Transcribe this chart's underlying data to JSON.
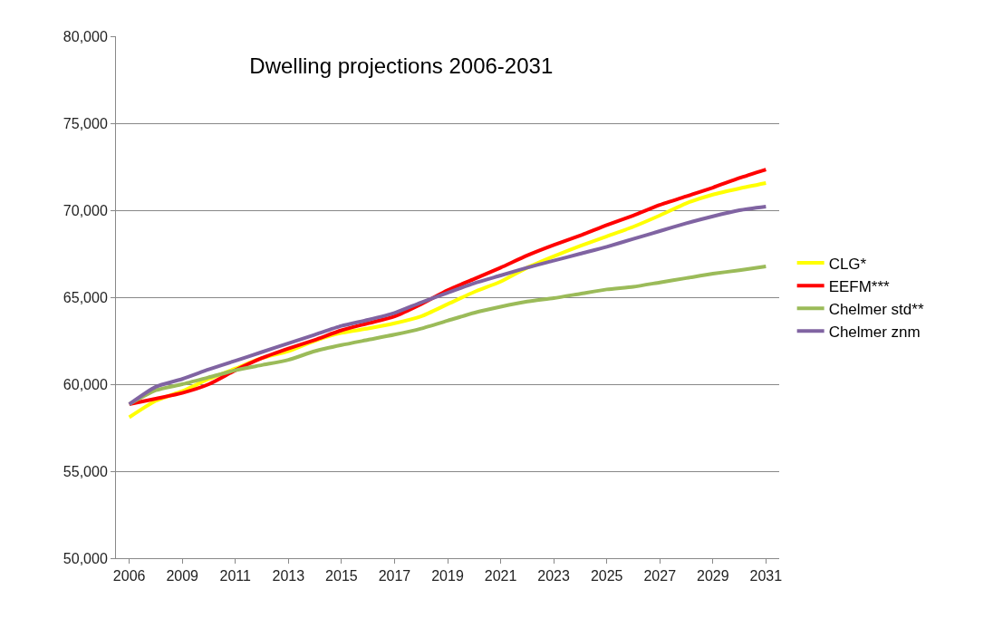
{
  "chart_data": {
    "type": "line",
    "title": "Dwelling projections 2006-2031",
    "categories": [
      "2006",
      null,
      "2009",
      null,
      "2011",
      null,
      "2013",
      null,
      "2015",
      null,
      "2017",
      null,
      "2019",
      null,
      "2021",
      null,
      "2023",
      null,
      "2025",
      null,
      "2027",
      null,
      "2029",
      null,
      "2031"
    ],
    "ylim": [
      50000,
      80000
    ],
    "yticks": [
      {
        "value": 50000,
        "label": "50,000"
      },
      {
        "value": 55000,
        "label": "55,000"
      },
      {
        "value": 60000,
        "label": "60,000"
      },
      {
        "value": 65000,
        "label": "65,000"
      },
      {
        "value": 70000,
        "label": "70,000"
      },
      {
        "value": 75000,
        "label": "75,000"
      },
      {
        "value": 80000,
        "label": "80,000"
      }
    ],
    "grid": "y",
    "legend": "right",
    "marker": "none",
    "line_style": "solid",
    "series": [
      {
        "name": "CLG*",
        "color": "#ffff00",
        "values": [
          58100,
          59050,
          59600,
          60300,
          60900,
          61500,
          61900,
          62500,
          62950,
          63200,
          63500,
          63900,
          64600,
          65300,
          65900,
          66700,
          67350,
          67950,
          68500,
          69050,
          69700,
          70400,
          70900,
          71250,
          71560
        ]
      },
      {
        "name": "EEFM***",
        "color": "#ff0000",
        "values": [
          58850,
          59170,
          59500,
          60000,
          60800,
          61500,
          62050,
          62550,
          63100,
          63500,
          63900,
          64600,
          65400,
          66050,
          66700,
          67400,
          68000,
          68550,
          69150,
          69700,
          70300,
          70800,
          71300,
          71850,
          72340
        ]
      },
      {
        "name": "Chelmer std**",
        "color": "#9bbb59",
        "values": [
          58850,
          59650,
          60000,
          60400,
          60800,
          61100,
          61400,
          61900,
          62250,
          62550,
          62850,
          63200,
          63650,
          64100,
          64450,
          64750,
          64950,
          65200,
          65450,
          65600,
          65850,
          66100,
          66350,
          66550,
          66770
        ]
      },
      {
        "name": "Chelmer znm",
        "color": "#8064a2",
        "values": [
          58850,
          59850,
          60300,
          60850,
          61350,
          61850,
          62350,
          62850,
          63350,
          63700,
          64100,
          64700,
          65250,
          65800,
          66250,
          66700,
          67100,
          67500,
          67900,
          68350,
          68800,
          69250,
          69650,
          70000,
          70210
        ]
      }
    ]
  }
}
